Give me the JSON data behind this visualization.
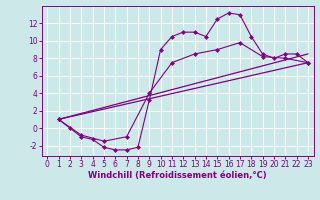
{
  "background_color": "#cce8e8",
  "line_color": "#800080",
  "grid_color": "#ffffff",
  "xlabel": "Windchill (Refroidissement éolien,°C)",
  "xlabel_fontsize": 6.0,
  "tick_fontsize": 5.5,
  "xlim": [
    -0.5,
    23.5
  ],
  "ylim": [
    -3.2,
    14.0
  ],
  "yticks": [
    -2,
    0,
    2,
    4,
    6,
    8,
    10,
    12
  ],
  "xticks": [
    0,
    1,
    2,
    3,
    4,
    5,
    6,
    7,
    8,
    9,
    10,
    11,
    12,
    13,
    14,
    15,
    16,
    17,
    18,
    19,
    20,
    21,
    22,
    23
  ],
  "series": [
    {
      "x": [
        1,
        2,
        3,
        4,
        5,
        6,
        7,
        8,
        9,
        10,
        11,
        12,
        13,
        14,
        15,
        16,
        17,
        18,
        19,
        20,
        21,
        22,
        23
      ],
      "y": [
        1.0,
        0.0,
        -1.0,
        -1.3,
        -2.2,
        -2.5,
        -2.5,
        -2.2,
        3.2,
        9.0,
        10.5,
        11.0,
        11.0,
        10.5,
        12.5,
        13.2,
        13.0,
        10.5,
        8.5,
        8.0,
        8.5,
        8.5,
        7.5
      ],
      "marker": "D",
      "markersize": 2.0,
      "linewidth": 0.8
    },
    {
      "x": [
        1,
        23
      ],
      "y": [
        1.0,
        7.5
      ],
      "marker": null,
      "markersize": 0,
      "linewidth": 0.9
    },
    {
      "x": [
        1,
        23
      ],
      "y": [
        1.0,
        8.5
      ],
      "marker": null,
      "markersize": 0,
      "linewidth": 0.9
    },
    {
      "x": [
        1,
        3,
        5,
        7,
        9,
        11,
        13,
        15,
        17,
        19,
        21,
        23
      ],
      "y": [
        1.0,
        -0.8,
        -1.5,
        -1.0,
        4.0,
        7.5,
        8.5,
        9.0,
        9.8,
        8.2,
        8.0,
        7.5
      ],
      "marker": "D",
      "markersize": 2.0,
      "linewidth": 0.8
    }
  ]
}
